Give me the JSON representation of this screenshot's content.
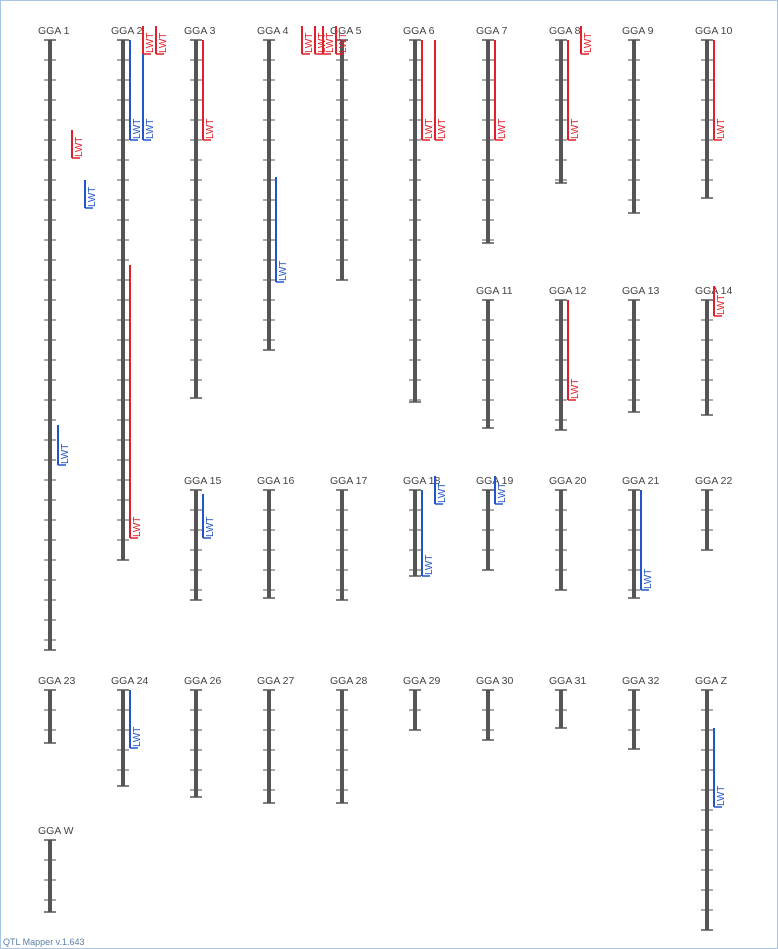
{
  "footer": "QTL Mapper v.1.643",
  "trait_label": "LWT",
  "colors": {
    "chromosome": "#555555",
    "qtl_red": "#e0202a",
    "qtl_blue": "#2255cc",
    "label": "#444444"
  },
  "chromosomes": [
    {
      "name": "GGA 1",
      "length": 610
    },
    {
      "name": "GGA 2",
      "length": 520,
      "qtls": [
        {
          "color": "blue",
          "start": 0,
          "end": 100,
          "col": 1
        },
        {
          "color": "blue",
          "start": 0,
          "end": 100,
          "col": 0
        },
        {
          "color": "red",
          "start": -14,
          "end": 14,
          "col": 1,
          "label_top": true
        },
        {
          "color": "red",
          "start": -14,
          "end": 14,
          "col": 2,
          "label_top": true
        },
        {
          "color": "red",
          "start": 225,
          "end": 498,
          "col": 0
        }
      ]
    },
    {
      "name": "GGA 3",
      "length": 358,
      "qtls": [
        {
          "color": "red",
          "start": 0,
          "end": 100,
          "col": 0
        }
      ]
    },
    {
      "name": "GGA 4",
      "length": 310,
      "qtls": [
        {
          "color": "red",
          "start": -14,
          "end": 14,
          "col": 2,
          "label_top": true
        },
        {
          "color": "red",
          "start": -14,
          "end": 14,
          "col": 3,
          "label_top": true
        },
        {
          "color": "blue",
          "start": 137,
          "end": 242,
          "col": 0
        }
      ]
    },
    {
      "name": "GGA 5",
      "length": 240,
      "qtls": [
        {
          "color": "red",
          "start": -14,
          "end": 14,
          "col": -1,
          "label_top": true
        },
        {
          "color": "red",
          "start": -14,
          "end": 14,
          "col": -2,
          "label_top": true
        }
      ]
    },
    {
      "name": "GGA 6",
      "length": 362,
      "qtls": [
        {
          "color": "red",
          "start": 0,
          "end": 100,
          "col": 0
        },
        {
          "color": "red",
          "start": 0,
          "end": 100,
          "col": 1
        }
      ]
    },
    {
      "name": "GGA 7",
      "length": 203,
      "qtls": [
        {
          "color": "red",
          "start": 0,
          "end": 100,
          "col": 0
        }
      ]
    },
    {
      "name": "GGA 8",
      "length": 143,
      "qtls": [
        {
          "color": "red",
          "start": 0,
          "end": 100,
          "col": 0
        },
        {
          "color": "red",
          "start": -14,
          "end": 14,
          "col": 1,
          "label_top": true
        }
      ]
    },
    {
      "name": "GGA 9",
      "length": 173
    },
    {
      "name": "GGA 10",
      "length": 158,
      "qtls": [
        {
          "color": "red",
          "start": 0,
          "end": 100,
          "col": 0
        }
      ]
    },
    {
      "name": "GGA 11",
      "length": 128
    },
    {
      "name": "GGA 12",
      "length": 130,
      "qtls": [
        {
          "color": "red",
          "start": 0,
          "end": 100,
          "col": 0
        }
      ]
    },
    {
      "name": "GGA 13",
      "length": 112
    },
    {
      "name": "GGA 14",
      "length": 115,
      "qtls": [
        {
          "color": "red",
          "start": -14,
          "end": 16,
          "col": 0,
          "label_top": true
        }
      ]
    },
    {
      "name": "GGA 15",
      "length": 110,
      "qtls": [
        {
          "color": "blue",
          "start": 4,
          "end": 48,
          "col": 0
        }
      ]
    },
    {
      "name": "GGA 16",
      "length": 108
    },
    {
      "name": "GGA 17",
      "length": 110
    },
    {
      "name": "GGA 18",
      "length": 86,
      "qtls": [
        {
          "color": "blue",
          "start": 0,
          "end": 86,
          "col": 0
        },
        {
          "color": "blue",
          "start": -14,
          "end": 14,
          "col": 1,
          "label_top": true
        }
      ]
    },
    {
      "name": "GGA 19",
      "length": 80,
      "qtls": [
        {
          "color": "blue",
          "start": -14,
          "end": 14,
          "col": 0,
          "label_top": true
        }
      ]
    },
    {
      "name": "GGA 20",
      "length": 100
    },
    {
      "name": "GGA 21",
      "length": 108,
      "qtls": [
        {
          "color": "blue",
          "start": 0,
          "end": 100,
          "col": 0
        }
      ]
    },
    {
      "name": "GGA 22",
      "length": 60
    },
    {
      "name": "GGA 23",
      "length": 53
    },
    {
      "name": "GGA 24",
      "length": 96,
      "qtls": [
        {
          "color": "blue",
          "start": 0,
          "end": 58,
          "col": 0
        }
      ]
    },
    {
      "name": "GGA 26",
      "length": 107
    },
    {
      "name": "GGA 27",
      "length": 113
    },
    {
      "name": "GGA 28",
      "length": 113
    },
    {
      "name": "GGA 29",
      "length": 40
    },
    {
      "name": "GGA 30",
      "length": 50
    },
    {
      "name": "GGA 31",
      "length": 38
    },
    {
      "name": "GGA 32",
      "length": 59
    },
    {
      "name": "GGA Z",
      "length": 240,
      "qtls": [
        {
          "color": "blue",
          "start": 38,
          "end": 117,
          "col": 0
        }
      ]
    },
    {
      "name": "GGA W",
      "length": 72
    }
  ]
}
